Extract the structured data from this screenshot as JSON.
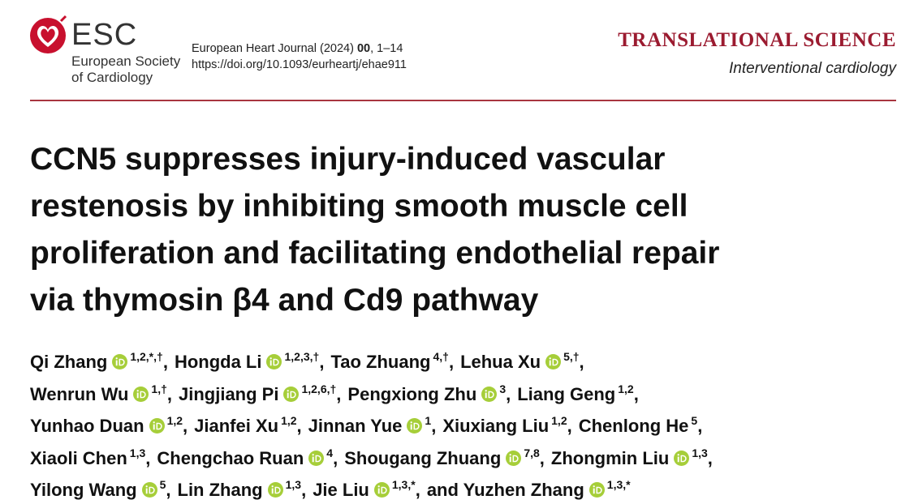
{
  "header": {
    "logo": {
      "acronym": "ESC",
      "name_line1": "European Society",
      "name_line2": "of Cardiology"
    },
    "journal": {
      "name": "European Heart Journal (2024)",
      "volume": "00",
      "pages": ", 1–14"
    },
    "doi": "https://doi.org/10.1093/eurheartj/ehae911",
    "section": "TRANSLATIONAL SCIENCE",
    "subsection": "Interventional cardiology"
  },
  "title": {
    "lines": [
      "CCN5 suppresses injury-induced vascular",
      "restenosis by inhibiting smooth muscle cell",
      "proliferation and facilitating endothelial repair",
      "via thymosin β4 and Cd9 pathway"
    ]
  },
  "authors": {
    "lines": [
      [
        {
          "name": "Qi Zhang",
          "orcid": true,
          "affil": "1,2,*,†",
          "sep": ","
        },
        {
          "name": "Hongda Li",
          "orcid": true,
          "affil": "1,2,3,†",
          "sep": ","
        },
        {
          "name": "Tao Zhuang",
          "orcid": false,
          "affil": "4,†",
          "sep": ","
        },
        {
          "name": "Lehua Xu",
          "orcid": true,
          "affil": "5,†",
          "sep": ","
        }
      ],
      [
        {
          "name": "Wenrun Wu",
          "orcid": true,
          "affil": "1,†",
          "sep": ","
        },
        {
          "name": "Jingjiang Pi",
          "orcid": true,
          "affil": "1,2,6,†",
          "sep": ","
        },
        {
          "name": "Pengxiong Zhu",
          "orcid": true,
          "affil": "3",
          "sep": ","
        },
        {
          "name": "Liang Geng",
          "orcid": false,
          "affil": "1,2",
          "sep": ","
        }
      ],
      [
        {
          "name": "Yunhao Duan",
          "orcid": true,
          "affil": "1,2",
          "sep": ","
        },
        {
          "name": "Jianfei Xu",
          "orcid": false,
          "affil": "1,2",
          "sep": ","
        },
        {
          "name": "Jinnan Yue",
          "orcid": true,
          "affil": "1",
          "sep": ","
        },
        {
          "name": "Xiuxiang Liu",
          "orcid": false,
          "affil": "1,2",
          "sep": ","
        },
        {
          "name": "Chenlong He",
          "orcid": false,
          "affil": "5",
          "sep": ","
        }
      ],
      [
        {
          "name": "Xiaoli Chen",
          "orcid": false,
          "affil": "1,3",
          "sep": ","
        },
        {
          "name": "Chengchao Ruan",
          "orcid": true,
          "affil": "4",
          "sep": ","
        },
        {
          "name": "Shougang Zhuang",
          "orcid": true,
          "affil": "7,8",
          "sep": ","
        },
        {
          "name": "Zhongmin Liu",
          "orcid": true,
          "affil": "1,3",
          "sep": ","
        }
      ],
      [
        {
          "name": "Yilong Wang",
          "orcid": true,
          "affil": "5",
          "sep": ","
        },
        {
          "name": "Lin Zhang",
          "orcid": true,
          "affil": "1,3",
          "sep": ","
        },
        {
          "name": "Jie Liu",
          "orcid": true,
          "affil": "1,3,*",
          "sep": ","
        },
        {
          "prefix": "and",
          "name": "Yuzhen Zhang",
          "orcid": true,
          "affil": "1,3,*"
        }
      ]
    ]
  }
}
